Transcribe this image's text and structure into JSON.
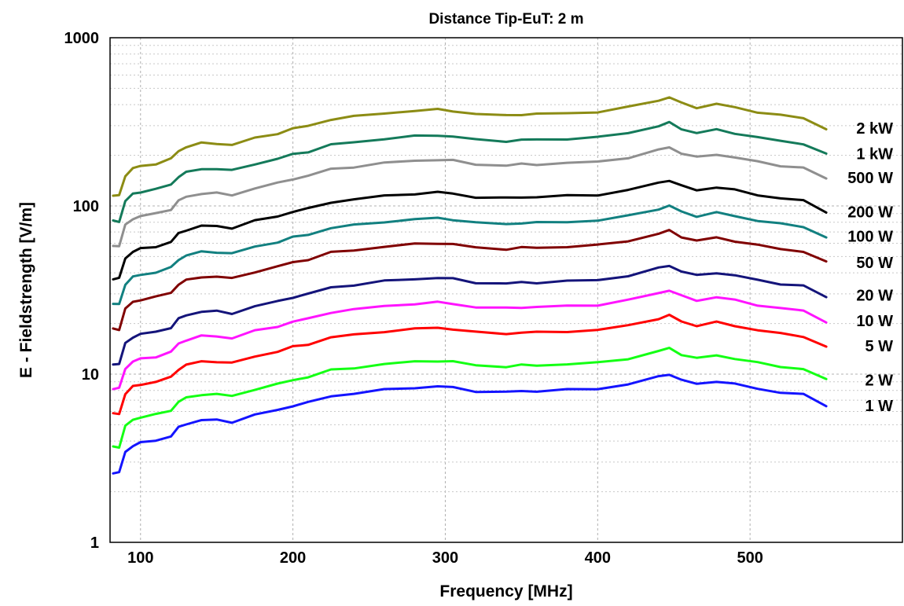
{
  "chart_data": {
    "type": "line",
    "title": "Distance Tip-EuT: 2 m",
    "xlabel": "Frequency [MHz]",
    "ylabel": "E - Fieldstrength [V/m]",
    "xlim": [
      80,
      600
    ],
    "ylim": [
      1,
      1000
    ],
    "yscale": "log",
    "grid": true,
    "legend": "inline-right",
    "x_ticks": [
      {
        "value": 100,
        "label": "100"
      },
      {
        "value": 200,
        "label": "200"
      },
      {
        "value": 300,
        "label": "300"
      },
      {
        "value": 400,
        "label": "400"
      },
      {
        "value": 500,
        "label": "500"
      }
    ],
    "y_ticks": [
      {
        "value": 1,
        "label": "1"
      },
      {
        "value": 10,
        "label": "10"
      },
      {
        "value": 100,
        "label": "100"
      },
      {
        "value": 1000,
        "label": "1000"
      }
    ],
    "x": [
      82,
      86,
      90,
      95,
      100,
      110,
      120,
      125,
      130,
      140,
      150,
      160,
      175,
      190,
      200,
      210,
      225,
      240,
      260,
      280,
      295,
      305,
      320,
      340,
      350,
      360,
      380,
      400,
      420,
      440,
      447,
      455,
      465,
      478,
      490,
      505,
      520,
      535,
      550
    ],
    "shape": [
      1.0,
      1.0,
      1.32,
      1.45,
      1.5,
      1.55,
      1.65,
      1.85,
      1.95,
      2.05,
      2.05,
      2.0,
      2.2,
      2.35,
      2.5,
      2.6,
      2.85,
      2.95,
      3.1,
      3.2,
      3.25,
      3.2,
      3.05,
      3.0,
      3.05,
      3.05,
      3.1,
      3.15,
      3.35,
      3.7,
      3.85,
      3.55,
      3.35,
      3.5,
      3.35,
      3.15,
      3.0,
      2.9,
      2.5
    ],
    "series": [
      {
        "name": "2 kW",
        "color": "#8c8c14",
        "base": 115,
        "label_y": 290
      },
      {
        "name": "1 kW",
        "color": "#147a5a",
        "base": 81,
        "label_y": 205
      },
      {
        "name": "500 W",
        "color": "#8f8f8f",
        "base": 58,
        "label_y": 147
      },
      {
        "name": "200 W",
        "color": "#000000",
        "base": 37,
        "label_y": 92
      },
      {
        "name": "100 W",
        "color": "#128080",
        "base": 26,
        "label_y": 66
      },
      {
        "name": "50 W",
        "color": "#800000",
        "base": 18.5,
        "label_y": 46
      },
      {
        "name": "20 W",
        "color": "#14147a",
        "base": 11.5,
        "label_y": 29.5
      },
      {
        "name": "10 W",
        "color": "#ff14ff",
        "base": 8.2,
        "label_y": 20.8
      },
      {
        "name": "5 W",
        "color": "#ff0000",
        "base": 5.8,
        "label_y": 14.7
      },
      {
        "name": "2 W",
        "color": "#14ff14",
        "base": 3.7,
        "label_y": 9.2
      },
      {
        "name": "1 W",
        "color": "#1414ff",
        "base": 2.6,
        "label_y": 6.5
      }
    ]
  }
}
